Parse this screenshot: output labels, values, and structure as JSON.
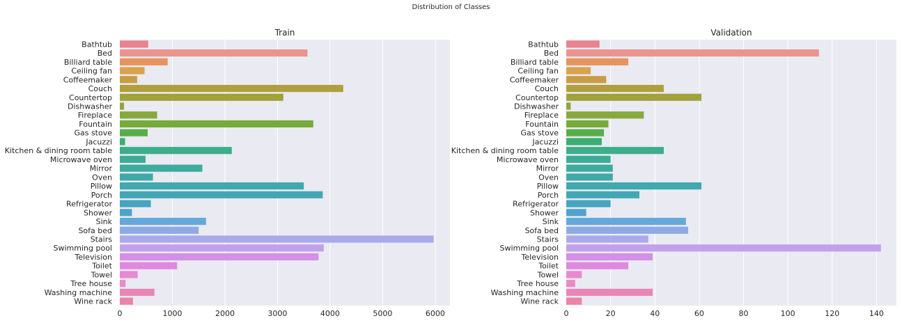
{
  "figure": {
    "suptitle": "Distribution of Classes",
    "background": "#ffffff",
    "axes_background": "#eaeaf2",
    "grid_color": "#ffffff"
  },
  "chart_data": [
    {
      "type": "bar",
      "orientation": "horizontal",
      "title": "Train",
      "xlabel": "",
      "ylabel": "",
      "grid": true,
      "xlim": [
        0,
        6280
      ],
      "xticks": [
        0,
        1000,
        2000,
        3000,
        4000,
        5000,
        6000
      ],
      "categories": [
        "Bathtub",
        "Bed",
        "Billiard table",
        "Ceiling fan",
        "Coffeemaker",
        "Couch",
        "Countertop",
        "Dishwasher",
        "Fireplace",
        "Fountain",
        "Gas stove",
        "Jacuzzi",
        "Kitchen & dining room table",
        "Microwave oven",
        "Mirror",
        "Oven",
        "Pillow",
        "Porch",
        "Refrigerator",
        "Shower",
        "Sink",
        "Sofa bed",
        "Stairs",
        "Swimming pool",
        "Television",
        "Toilet",
        "Towel",
        "Tree house",
        "Washing machine",
        "Wine rack"
      ],
      "values": [
        540,
        3570,
        910,
        470,
        330,
        4250,
        3110,
        80,
        710,
        3680,
        530,
        100,
        2130,
        490,
        1570,
        630,
        3500,
        3860,
        590,
        230,
        1640,
        1500,
        5970,
        3880,
        3780,
        1090,
        340,
        110,
        660,
        250
      ],
      "colors": [
        "#e8838f",
        "#e8958e",
        "#e5935f",
        "#d9a24b",
        "#c79d43",
        "#b09f3c",
        "#a0a23a",
        "#96a43a",
        "#86a83c",
        "#75ab3a",
        "#57ae4a",
        "#3bae6e",
        "#3bae8a",
        "#3dac97",
        "#3eab9f",
        "#3fa9a8",
        "#40a8ae",
        "#42a7b5",
        "#45a4bf",
        "#4ea3cb",
        "#64a8d9",
        "#8eaae6",
        "#aaa9ec",
        "#c3a1ea",
        "#d48fe6",
        "#e088e0",
        "#e78ad1",
        "#e98bc4",
        "#e887b6",
        "#e984a7"
      ]
    },
    {
      "type": "bar",
      "orientation": "horizontal",
      "title": "Validation",
      "xlabel": "",
      "ylabel": "",
      "grid": true,
      "xlim": [
        0,
        149
      ],
      "xticks": [
        0,
        20,
        40,
        60,
        80,
        100,
        120,
        140
      ],
      "categories": [
        "Bathtub",
        "Bed",
        "Billiard table",
        "Ceiling fan",
        "Coffeemaker",
        "Couch",
        "Countertop",
        "Dishwasher",
        "Fireplace",
        "Fountain",
        "Gas stove",
        "Jacuzzi",
        "Kitchen & dining room table",
        "Microwave oven",
        "Mirror",
        "Oven",
        "Pillow",
        "Porch",
        "Refrigerator",
        "Shower",
        "Sink",
        "Sofa bed",
        "Stairs",
        "Swimming pool",
        "Television",
        "Toilet",
        "Towel",
        "Tree house",
        "Washing machine",
        "Wine rack"
      ],
      "values": [
        15,
        114,
        28,
        11,
        18,
        44,
        61,
        2,
        35,
        19,
        17,
        16,
        44,
        20,
        21,
        21,
        61,
        33,
        20,
        9,
        54,
        55,
        37,
        142,
        39,
        28,
        7,
        4,
        39,
        7
      ],
      "colors": [
        "#e8838f",
        "#e8958e",
        "#e5935f",
        "#d9a24b",
        "#c79d43",
        "#b09f3c",
        "#a0a23a",
        "#96a43a",
        "#86a83c",
        "#75ab3a",
        "#57ae4a",
        "#3bae6e",
        "#3bae8a",
        "#3dac97",
        "#3eab9f",
        "#3fa9a8",
        "#40a8ae",
        "#42a7b5",
        "#45a4bf",
        "#4ea3cb",
        "#64a8d9",
        "#8eaae6",
        "#aaa9ec",
        "#c3a1ea",
        "#d48fe6",
        "#e088e0",
        "#e78ad1",
        "#e98bc4",
        "#e887b6",
        "#e984a7"
      ]
    }
  ]
}
